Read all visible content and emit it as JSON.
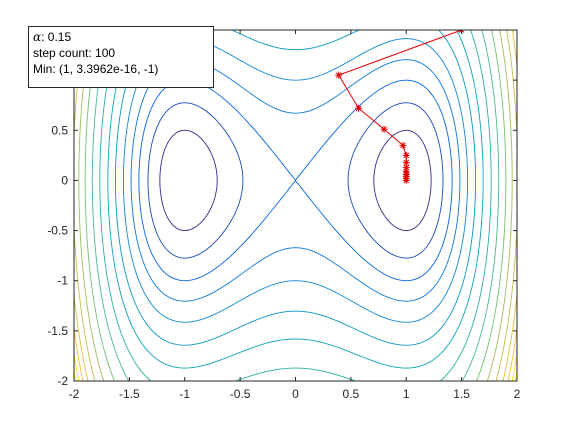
{
  "info": {
    "alpha_symbol": "α",
    "alpha_value": ": 0.15",
    "step_count": "step count: 100",
    "min_text": "Min: (1, 3.3962e-16, -1)"
  },
  "chart_data": {
    "type": "contour+line",
    "title": "",
    "xlabel": "",
    "ylabel": "",
    "xlim": [
      -2,
      2
    ],
    "ylim": [
      -2,
      1.5
    ],
    "xticks": [
      -2,
      -1.5,
      -1,
      -0.5,
      0,
      0.5,
      1,
      1.5,
      2
    ],
    "yticks": [
      -2,
      -1.5,
      -1,
      -0.5,
      0,
      0.5,
      1
    ],
    "xtick_labels": [
      "-2",
      "-1.5",
      "-1",
      "-0.5",
      "0",
      "0.5",
      "1",
      "1.5",
      "2"
    ],
    "ytick_labels": [
      "-2",
      "-1.5",
      "-1",
      "-0.5",
      "0",
      "0.5",
      "1"
    ],
    "function": "z = x^4 - 2x^2 + y^2",
    "contour_levels": [
      -0.75,
      -0.4,
      0,
      0.45,
      1,
      1.7,
      2.5,
      3.5,
      4.6,
      5.8,
      7.0,
      8.2,
      9.3,
      10.2,
      11.0,
      11.6
    ],
    "descent_path": {
      "marker": "*",
      "color": "#e00000",
      "x": [
        1.5,
        0.39,
        0.57,
        0.8,
        0.97,
        1.0,
        1.0,
        1.0,
        1.0,
        1.0,
        1.0,
        1.0,
        1.0
      ],
      "y": [
        1.5,
        1.05,
        0.72,
        0.51,
        0.35,
        0.25,
        0.18,
        0.13,
        0.09,
        0.06,
        0.04,
        0.02,
        0.0
      ]
    },
    "grid": false
  }
}
